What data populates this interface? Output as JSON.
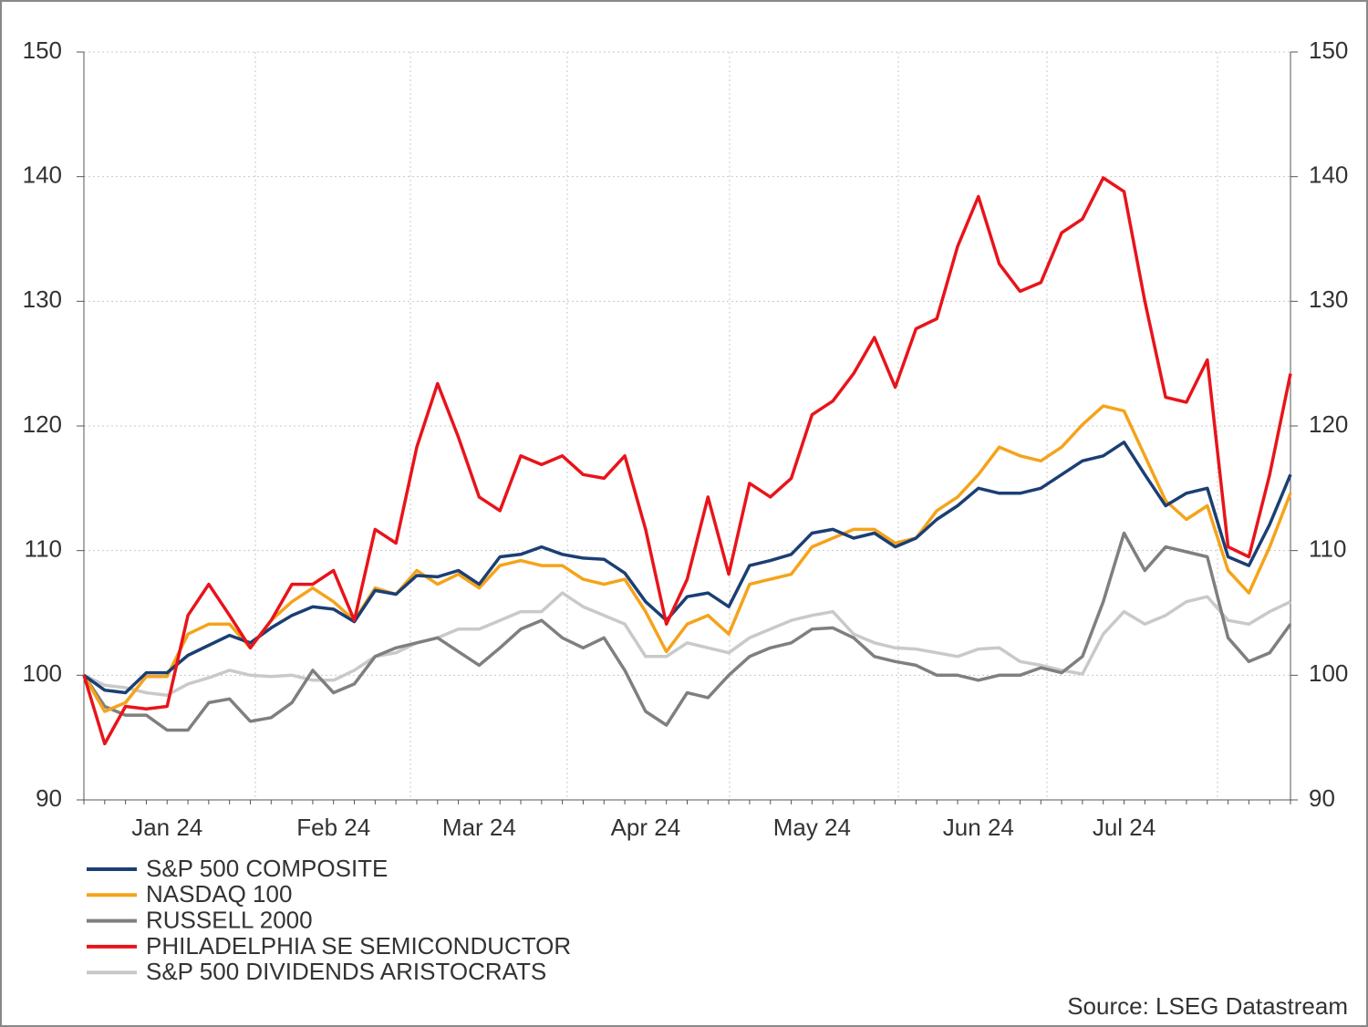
{
  "chart_data": {
    "type": "line",
    "categories": [
      null,
      null,
      null,
      null,
      "Jan 24",
      null,
      null,
      null,
      null,
      null,
      null,
      null,
      "Feb 24",
      null,
      null,
      null,
      null,
      null,
      null,
      "Mar 24",
      null,
      null,
      null,
      null,
      null,
      null,
      null,
      "Apr 24",
      null,
      null,
      null,
      null,
      null,
      null,
      null,
      "May 24",
      null,
      null,
      null,
      null,
      null,
      null,
      null,
      "Jun 24",
      null,
      null,
      null,
      null,
      null,
      null,
      "Jul 24",
      null,
      null,
      null,
      null,
      null,
      null,
      null,
      null
    ],
    "series": [
      {
        "name": "S&P 500 COMPOSITE",
        "color": "#1b3f73",
        "values": [
          100,
          98.8,
          98.6,
          100.2,
          100.2,
          101.6,
          102.4,
          103.2,
          102.6,
          103.8,
          104.8,
          105.5,
          105.3,
          104.3,
          106.8,
          106.5,
          108,
          107.9,
          108.4,
          107.3,
          109.5,
          109.7,
          110.3,
          109.7,
          109.4,
          109.3,
          108.2,
          105.9,
          104.4,
          106.3,
          106.6,
          105.5,
          108.8,
          109.2,
          109.7,
          111.4,
          111.7,
          111,
          111.4,
          110.3,
          111,
          112.5,
          113.6,
          115,
          114.6,
          114.6,
          115,
          116.1,
          117.2,
          117.6,
          118.7,
          116.1,
          113.6,
          114.6,
          115,
          109.5,
          108.8,
          112.1,
          116.1
        ]
      },
      {
        "name": "NASDAQ 100",
        "color": "#f5a31a",
        "values": [
          100,
          97.1,
          97.8,
          99.9,
          99.9,
          103.3,
          104.1,
          104.1,
          102.2,
          104.4,
          105.9,
          107,
          105.9,
          104.4,
          107,
          106.5,
          108.4,
          107.3,
          108.1,
          107,
          108.8,
          109.2,
          108.8,
          108.8,
          107.7,
          107.3,
          107.7,
          105.1,
          101.9,
          104.1,
          104.8,
          103.3,
          107.3,
          107.7,
          108.1,
          110.3,
          111,
          111.7,
          111.7,
          110.6,
          111,
          113.2,
          114.3,
          116.1,
          118.3,
          117.6,
          117.2,
          118.3,
          120.1,
          121.6,
          121.2,
          117.6,
          114,
          112.5,
          113.6,
          108.4,
          106.6,
          110.3,
          114.6
        ]
      },
      {
        "name": "RUSSELL 2000",
        "color": "#7f7f7f",
        "values": [
          100,
          97.5,
          96.8,
          96.8,
          95.6,
          95.6,
          97.8,
          98.1,
          96.3,
          96.6,
          97.8,
          100.4,
          98.6,
          99.3,
          101.5,
          102.2,
          102.6,
          103,
          101.9,
          100.8,
          102.2,
          103.7,
          104.4,
          103,
          102.2,
          103,
          100.4,
          97.1,
          96,
          98.6,
          98.2,
          100,
          101.5,
          102.2,
          102.6,
          103.7,
          103.8,
          103,
          101.5,
          101.1,
          100.8,
          100,
          100,
          99.6,
          100,
          100,
          100.6,
          100.2,
          101.5,
          105.9,
          111.4,
          108.4,
          110.3,
          109.9,
          109.5,
          103,
          101.1,
          101.8,
          104.1
        ]
      },
      {
        "name": "PHILADELPHIA SE SEMICONDUCTOR",
        "color": "#e8141b",
        "values": [
          100,
          94.5,
          97.5,
          97.3,
          97.5,
          104.8,
          107.3,
          104.8,
          102.2,
          104.4,
          107.3,
          107.3,
          108.4,
          104.4,
          111.7,
          110.6,
          118.3,
          123.4,
          119.1,
          114.3,
          113.2,
          117.6,
          116.9,
          117.6,
          116.1,
          115.8,
          117.6,
          111.7,
          104.1,
          107.7,
          114.3,
          108.1,
          115.4,
          114.3,
          115.8,
          120.9,
          122,
          124.2,
          127.1,
          123.1,
          127.8,
          128.6,
          134.4,
          138.4,
          133,
          130.8,
          131.5,
          135.5,
          136.6,
          139.9,
          138.8,
          130,
          122.3,
          121.9,
          125.3,
          110.3,
          109.5,
          116.1,
          124.2
        ]
      },
      {
        "name": "S&P 500 DIVIDENDS ARISTOCRATS",
        "color": "#c9c9c9",
        "values": [
          100,
          99.2,
          99,
          98.6,
          98.4,
          99.3,
          99.8,
          100.4,
          100,
          99.9,
          100,
          99.6,
          99.6,
          100.4,
          101.5,
          101.8,
          102.6,
          103,
          103.7,
          103.7,
          104.4,
          105.1,
          105.1,
          106.6,
          105.5,
          104.8,
          104.1,
          101.5,
          101.5,
          102.6,
          102.2,
          101.8,
          103,
          103.7,
          104.4,
          104.8,
          105.1,
          103.3,
          102.6,
          102.2,
          102.1,
          101.8,
          101.5,
          102.1,
          102.2,
          101.1,
          100.8,
          100.4,
          100.1,
          103.3,
          105.1,
          104.1,
          104.8,
          105.9,
          106.3,
          104.4,
          104.1,
          105.1,
          105.9
        ]
      }
    ],
    "ylim": [
      90,
      150
    ],
    "yticks": [
      90,
      100,
      110,
      120,
      130,
      140,
      150
    ],
    "grid": true,
    "source": "Source: LSEG Datastream"
  }
}
